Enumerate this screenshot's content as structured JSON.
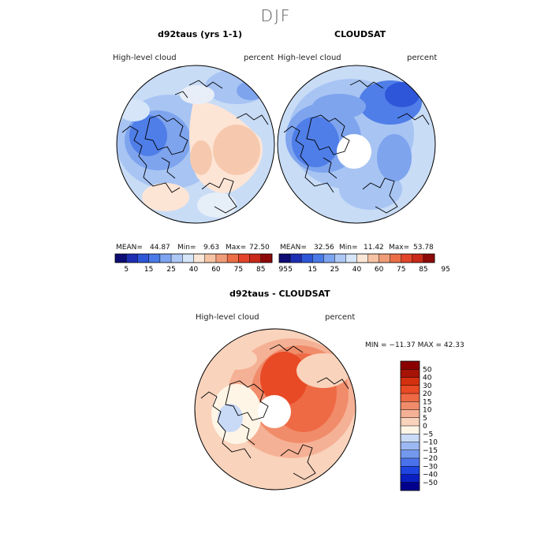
{
  "figure_title": "DJF",
  "panels": [
    {
      "title": "d92taus (yrs 1-1)",
      "field_label": "High-level cloud",
      "units": "percent",
      "stats": {
        "mean_label": "MEAN=",
        "mean": "44.87",
        "min_label": "Min=",
        "min": "9.63",
        "max_label": "Max=",
        "max": "72.50"
      }
    },
    {
      "title": "CLOUDSAT",
      "field_label": "High-level cloud",
      "units": "percent",
      "stats": {
        "mean_label": "MEAN=",
        "mean": "32.56",
        "min_label": "Min=",
        "min": "11.42",
        "max_label": "Max=",
        "max": "53.78"
      }
    },
    {
      "title": "d92taus - CLOUDSAT",
      "field_label": "High-level cloud",
      "units": "percent",
      "minmax_text": "MIN = −11.37  MAX =  42.33"
    }
  ],
  "abs_colorbar": {
    "colors": [
      "#0d0d73",
      "#1f2fb3",
      "#2e56d9",
      "#4a7ae8",
      "#7da4f0",
      "#adc8f5",
      "#d6e6f8",
      "#fbe7d8",
      "#f6c3a4",
      "#f19c78",
      "#eb6e47",
      "#e3452c",
      "#c9281a",
      "#8e0a0a"
    ],
    "tick_labels": [
      "5",
      "15",
      "25",
      "40",
      "60",
      "75",
      "85",
      "95"
    ]
  },
  "diff_colorbar": {
    "colors": [
      "#00008c",
      "#0a1fc2",
      "#1e45e0",
      "#4a72ea",
      "#7399ee",
      "#9cb8f2",
      "#c8daf6",
      "#fff5e6",
      "#f9d3bc",
      "#f5b195",
      "#f18c6b",
      "#ee6a45",
      "#e84a25",
      "#d4300f",
      "#a61307",
      "#8a0000"
    ],
    "tick_labels": [
      "50",
      "40",
      "30",
      "20",
      "15",
      "10",
      "5",
      "0",
      "−5",
      "−10",
      "−15",
      "−20",
      "−30",
      "−40",
      "−50"
    ]
  }
}
